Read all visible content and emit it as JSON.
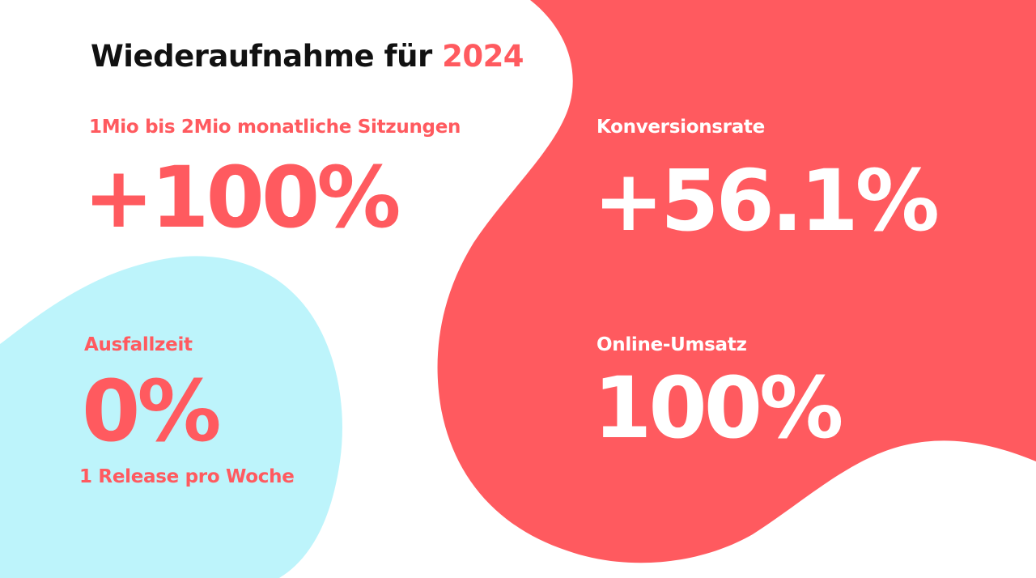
{
  "title": {
    "prefix": "Wiederaufnahme für",
    "year": "2024"
  },
  "stats": [
    {
      "label": "1Mio bis 2Mio monatliche Sitzungen",
      "value": "+100%"
    },
    {
      "label": "Konversionsrate",
      "value": "+56.1%"
    },
    {
      "label": "Ausfallzeit",
      "value": "0%",
      "note": "1 Release pro Woche"
    },
    {
      "label": "Online-Umsatz",
      "value": "100%"
    }
  ],
  "colors": {
    "accent": "#ff5a5f",
    "blob_blue": "#bdf4fb",
    "background": "#ffffff",
    "title": "#111111"
  }
}
